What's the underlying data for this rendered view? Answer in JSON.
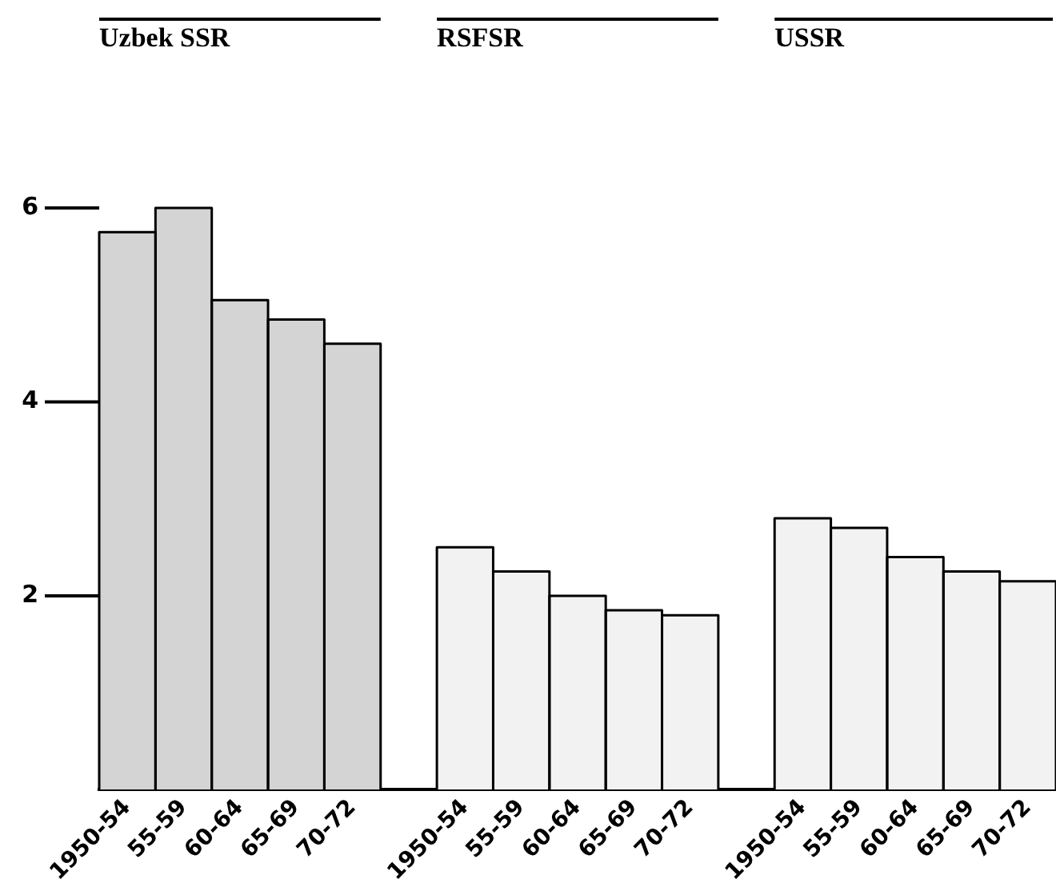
{
  "chart_data": {
    "type": "bar",
    "categories": [
      "1950-54",
      "55-59",
      "60-64",
      "65-69",
      "70-72",
      null,
      "1950-54",
      "55-59",
      "60-64",
      "65-69",
      "70-72",
      null,
      "1950-54",
      "55-59",
      "60-64",
      "65-69",
      "70-72"
    ],
    "values": [
      5.75,
      6.0,
      5.05,
      4.85,
      4.6,
      null,
      2.5,
      2.25,
      2.0,
      1.85,
      1.8,
      null,
      2.8,
      2.7,
      2.4,
      2.25,
      2.15
    ],
    "colors": [
      "#d4d4d4",
      "#d4d4d4",
      "#d4d4d4",
      "#d4d4d4",
      "#d4d4d4",
      null,
      "#f2f2f2",
      "#f2f2f2",
      "#f2f2f2",
      "#f2f2f2",
      "#f2f2f2",
      null,
      "#f2f2f2",
      "#f2f2f2",
      "#f2f2f2",
      "#f2f2f2",
      "#f2f2f2"
    ],
    "annotations": [
      "Uzbek SSR",
      "RSFSR",
      "USSR"
    ],
    "ylim": [
      0,
      6
    ],
    "yticks": [
      2,
      4,
      6
    ],
    "grid": false,
    "legend": false
  }
}
